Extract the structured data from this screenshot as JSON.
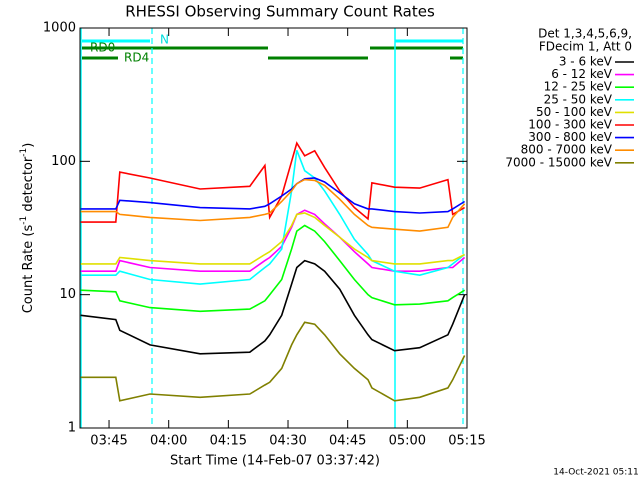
{
  "chart_data": {
    "type": "line",
    "title": "RHESSI Observing Summary Count Rates",
    "x_label": "Start Time (14-Feb-07 03:37:42)",
    "y_label_parts": [
      "Count Rate (s",
      "-1",
      " detector",
      "-1",
      ")"
    ],
    "legend_header": [
      "Det 1,3,4,5,6,9,",
      "FDecim 1, Att 0"
    ],
    "status_labels": [
      "N",
      "RD0",
      "RD4"
    ],
    "timestamp": "14-Oct-2021 05:11",
    "log_y": true,
    "legend": "outside-right",
    "xlim": [
      37.7,
      135
    ],
    "xticks": [
      {
        "value": 45,
        "label": "03:45"
      },
      {
        "value": 60,
        "label": "04:00"
      },
      {
        "value": 75,
        "label": "04:15"
      },
      {
        "value": 90,
        "label": "04:30"
      },
      {
        "value": 105,
        "label": "04:45"
      },
      {
        "value": 120,
        "label": "05:00"
      },
      {
        "value": 135,
        "label": "05:15"
      }
    ],
    "ylim": [
      1,
      1000
    ],
    "yticks": [
      1,
      10,
      100,
      1000
    ],
    "x": [
      37.9,
      46.7,
      47.7,
      55.3,
      67.9,
      80.4,
      84.2,
      85.4,
      88.4,
      90.9,
      92.2,
      94.2,
      96.7,
      99.2,
      103.0,
      106.7,
      110.1,
      111.1,
      116.8,
      123.1,
      130.2,
      131.4,
      134.4
    ],
    "series": [
      {
        "name": "3 - 6 keV",
        "color": "#000000",
        "values": [
          7,
          6.5,
          5.4,
          4.2,
          3.6,
          3.7,
          4.5,
          5,
          7,
          12,
          16,
          18,
          17,
          15,
          11,
          7,
          5,
          4.6,
          3.8,
          4,
          5,
          6,
          10
        ]
      },
      {
        "name": "6 - 12 keV",
        "color": "#ff00ff",
        "values": [
          15,
          15,
          18,
          16,
          15,
          15,
          18,
          19,
          23,
          32,
          40,
          43,
          40,
          34,
          27,
          21,
          17,
          16,
          15,
          15,
          16,
          16,
          19
        ]
      },
      {
        "name": "12 - 25 keV",
        "color": "#00ff00",
        "values": [
          10.8,
          10.5,
          9,
          8,
          7.5,
          7.8,
          9,
          10,
          13,
          22,
          30,
          33,
          30,
          25,
          18,
          13,
          10,
          9.5,
          8.4,
          8.5,
          9,
          9.5,
          10.8
        ]
      },
      {
        "name": "25 - 50 keV",
        "color": "#00ffff",
        "values": [
          14,
          14,
          15,
          13,
          12,
          13,
          16,
          17,
          22,
          60,
          121,
          85,
          75,
          60,
          40,
          26,
          20,
          18,
          15,
          14,
          16,
          17,
          20
        ]
      },
      {
        "name": "50 - 100 keV",
        "color": "#e0e000",
        "values": [
          17,
          17,
          19,
          18,
          17,
          17,
          20,
          21,
          25,
          33,
          40,
          41,
          38,
          33,
          27,
          22,
          19,
          18,
          17,
          17,
          18,
          18,
          20
        ]
      },
      {
        "name": "100 - 300 keV",
        "color": "#ff0000",
        "values": [
          35,
          35,
          83,
          75,
          62,
          65,
          93,
          38,
          55,
          100,
          137,
          110,
          120,
          90,
          60,
          45,
          37,
          69,
          64,
          63,
          73,
          40,
          45
        ]
      },
      {
        "name": "300 - 800 keV",
        "color": "#0000ff",
        "values": [
          44,
          44,
          51,
          49,
          45,
          44,
          46,
          48,
          55,
          62,
          68,
          74,
          75,
          70,
          58,
          48,
          44,
          44,
          42,
          41,
          42,
          44,
          50
        ]
      },
      {
        "name": "800 - 7000 keV",
        "color": "#ff8c00",
        "values": [
          42,
          42,
          40,
          38,
          36,
          38,
          40,
          41,
          50,
          60,
          68,
          73,
          72,
          66,
          52,
          40,
          33,
          32,
          31,
          30,
          32,
          38,
          48
        ]
      },
      {
        "name": "7000 - 15000 keV",
        "color": "#808000",
        "values": [
          2.4,
          2.4,
          1.6,
          1.8,
          1.7,
          1.8,
          2.1,
          2.2,
          2.8,
          4.2,
          5,
          6.2,
          6,
          5,
          3.6,
          2.8,
          2.3,
          2,
          1.6,
          1.7,
          2,
          2.3,
          3.5
        ]
      }
    ]
  }
}
